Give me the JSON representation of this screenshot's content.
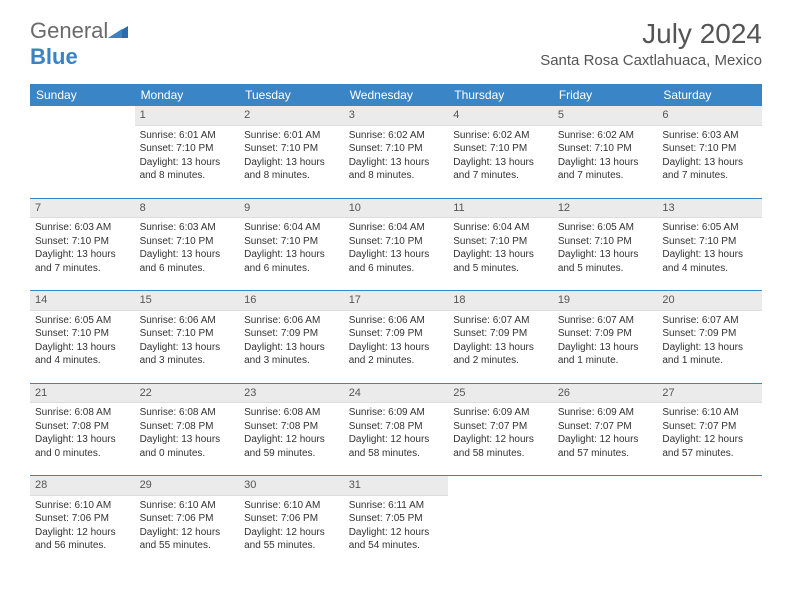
{
  "logo": {
    "text1": "General",
    "text2": "Blue"
  },
  "title": "July 2024",
  "location": "Santa Rosa Caxtlahuaca, Mexico",
  "header_bg": "#3a85c6",
  "weekdays": [
    "Sunday",
    "Monday",
    "Tuesday",
    "Wednesday",
    "Thursday",
    "Friday",
    "Saturday"
  ],
  "weeks": [
    [
      null,
      {
        "n": "1",
        "sr": "Sunrise: 6:01 AM",
        "ss": "Sunset: 7:10 PM",
        "dl": "Daylight: 13 hours and 8 minutes."
      },
      {
        "n": "2",
        "sr": "Sunrise: 6:01 AM",
        "ss": "Sunset: 7:10 PM",
        "dl": "Daylight: 13 hours and 8 minutes."
      },
      {
        "n": "3",
        "sr": "Sunrise: 6:02 AM",
        "ss": "Sunset: 7:10 PM",
        "dl": "Daylight: 13 hours and 8 minutes."
      },
      {
        "n": "4",
        "sr": "Sunrise: 6:02 AM",
        "ss": "Sunset: 7:10 PM",
        "dl": "Daylight: 13 hours and 7 minutes."
      },
      {
        "n": "5",
        "sr": "Sunrise: 6:02 AM",
        "ss": "Sunset: 7:10 PM",
        "dl": "Daylight: 13 hours and 7 minutes."
      },
      {
        "n": "6",
        "sr": "Sunrise: 6:03 AM",
        "ss": "Sunset: 7:10 PM",
        "dl": "Daylight: 13 hours and 7 minutes."
      }
    ],
    [
      {
        "n": "7",
        "sr": "Sunrise: 6:03 AM",
        "ss": "Sunset: 7:10 PM",
        "dl": "Daylight: 13 hours and 7 minutes."
      },
      {
        "n": "8",
        "sr": "Sunrise: 6:03 AM",
        "ss": "Sunset: 7:10 PM",
        "dl": "Daylight: 13 hours and 6 minutes."
      },
      {
        "n": "9",
        "sr": "Sunrise: 6:04 AM",
        "ss": "Sunset: 7:10 PM",
        "dl": "Daylight: 13 hours and 6 minutes."
      },
      {
        "n": "10",
        "sr": "Sunrise: 6:04 AM",
        "ss": "Sunset: 7:10 PM",
        "dl": "Daylight: 13 hours and 6 minutes."
      },
      {
        "n": "11",
        "sr": "Sunrise: 6:04 AM",
        "ss": "Sunset: 7:10 PM",
        "dl": "Daylight: 13 hours and 5 minutes."
      },
      {
        "n": "12",
        "sr": "Sunrise: 6:05 AM",
        "ss": "Sunset: 7:10 PM",
        "dl": "Daylight: 13 hours and 5 minutes."
      },
      {
        "n": "13",
        "sr": "Sunrise: 6:05 AM",
        "ss": "Sunset: 7:10 PM",
        "dl": "Daylight: 13 hours and 4 minutes."
      }
    ],
    [
      {
        "n": "14",
        "sr": "Sunrise: 6:05 AM",
        "ss": "Sunset: 7:10 PM",
        "dl": "Daylight: 13 hours and 4 minutes."
      },
      {
        "n": "15",
        "sr": "Sunrise: 6:06 AM",
        "ss": "Sunset: 7:10 PM",
        "dl": "Daylight: 13 hours and 3 minutes."
      },
      {
        "n": "16",
        "sr": "Sunrise: 6:06 AM",
        "ss": "Sunset: 7:09 PM",
        "dl": "Daylight: 13 hours and 3 minutes."
      },
      {
        "n": "17",
        "sr": "Sunrise: 6:06 AM",
        "ss": "Sunset: 7:09 PM",
        "dl": "Daylight: 13 hours and 2 minutes."
      },
      {
        "n": "18",
        "sr": "Sunrise: 6:07 AM",
        "ss": "Sunset: 7:09 PM",
        "dl": "Daylight: 13 hours and 2 minutes."
      },
      {
        "n": "19",
        "sr": "Sunrise: 6:07 AM",
        "ss": "Sunset: 7:09 PM",
        "dl": "Daylight: 13 hours and 1 minute."
      },
      {
        "n": "20",
        "sr": "Sunrise: 6:07 AM",
        "ss": "Sunset: 7:09 PM",
        "dl": "Daylight: 13 hours and 1 minute."
      }
    ],
    [
      {
        "n": "21",
        "sr": "Sunrise: 6:08 AM",
        "ss": "Sunset: 7:08 PM",
        "dl": "Daylight: 13 hours and 0 minutes."
      },
      {
        "n": "22",
        "sr": "Sunrise: 6:08 AM",
        "ss": "Sunset: 7:08 PM",
        "dl": "Daylight: 13 hours and 0 minutes."
      },
      {
        "n": "23",
        "sr": "Sunrise: 6:08 AM",
        "ss": "Sunset: 7:08 PM",
        "dl": "Daylight: 12 hours and 59 minutes."
      },
      {
        "n": "24",
        "sr": "Sunrise: 6:09 AM",
        "ss": "Sunset: 7:08 PM",
        "dl": "Daylight: 12 hours and 58 minutes."
      },
      {
        "n": "25",
        "sr": "Sunrise: 6:09 AM",
        "ss": "Sunset: 7:07 PM",
        "dl": "Daylight: 12 hours and 58 minutes."
      },
      {
        "n": "26",
        "sr": "Sunrise: 6:09 AM",
        "ss": "Sunset: 7:07 PM",
        "dl": "Daylight: 12 hours and 57 minutes."
      },
      {
        "n": "27",
        "sr": "Sunrise: 6:10 AM",
        "ss": "Sunset: 7:07 PM",
        "dl": "Daylight: 12 hours and 57 minutes."
      }
    ],
    [
      {
        "n": "28",
        "sr": "Sunrise: 6:10 AM",
        "ss": "Sunset: 7:06 PM",
        "dl": "Daylight: 12 hours and 56 minutes."
      },
      {
        "n": "29",
        "sr": "Sunrise: 6:10 AM",
        "ss": "Sunset: 7:06 PM",
        "dl": "Daylight: 12 hours and 55 minutes."
      },
      {
        "n": "30",
        "sr": "Sunrise: 6:10 AM",
        "ss": "Sunset: 7:06 PM",
        "dl": "Daylight: 12 hours and 55 minutes."
      },
      {
        "n": "31",
        "sr": "Sunrise: 6:11 AM",
        "ss": "Sunset: 7:05 PM",
        "dl": "Daylight: 12 hours and 54 minutes."
      },
      null,
      null,
      null
    ]
  ]
}
